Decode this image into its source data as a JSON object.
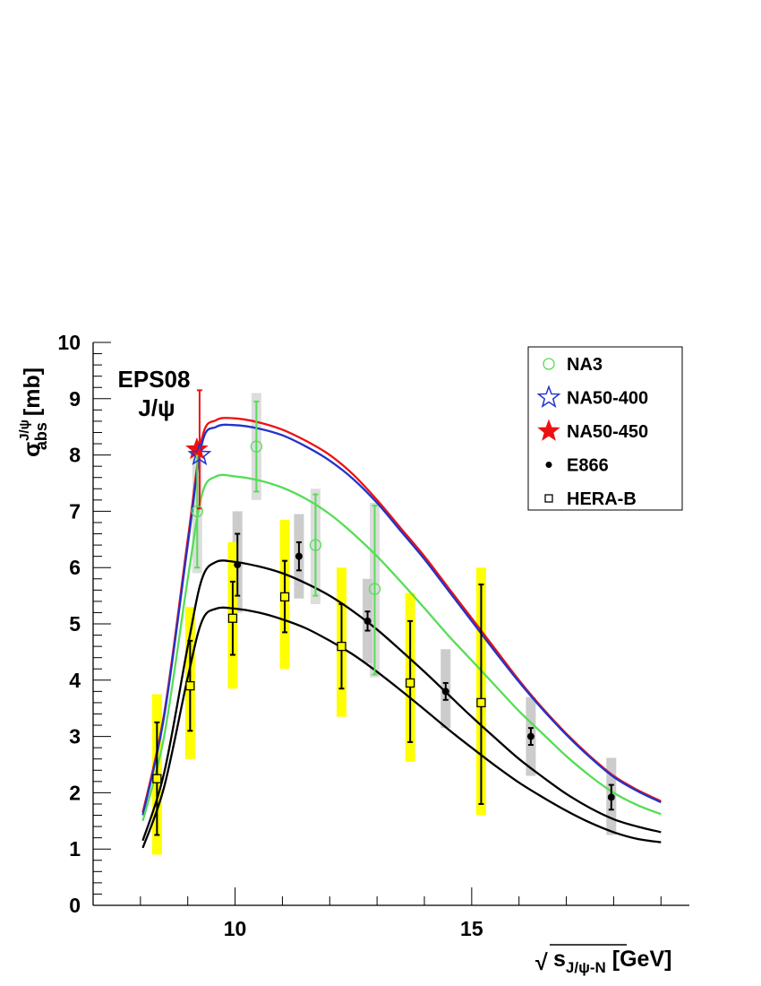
{
  "chart_data": {
    "type": "scatter",
    "title": "",
    "annotation_line1": "EPS08",
    "annotation_line2": "J/ψ",
    "ylabel": "σ",
    "ylabel_sup": "J/ψ",
    "ylabel_sub": "abs",
    "ylabel_unit": " [mb]",
    "xlabel_sqrt": "√",
    "xlabel_var": "s",
    "xlabel_sub": "J/ψ-N",
    "xlabel_unit": " [GeV]",
    "xlim": [
      7,
      19.6
    ],
    "ylim": [
      0,
      10
    ],
    "x_ticks": [
      10,
      15
    ],
    "x_tick_labels": [
      "10",
      "15"
    ],
    "y_ticks": [
      0,
      1,
      2,
      3,
      4,
      5,
      6,
      7,
      8,
      9,
      10
    ],
    "y_tick_labels": [
      "0",
      "1",
      "2",
      "3",
      "4",
      "5",
      "6",
      "7",
      "8",
      "9",
      "10"
    ],
    "legend": {
      "position": "top-right",
      "entries": [
        {
          "label": "NA3",
          "marker": "open-circle",
          "color": "#55dd55"
        },
        {
          "label": "NA50-400",
          "marker": "open-star",
          "color": "#2233cc"
        },
        {
          "label": "NA50-450",
          "marker": "filled-star",
          "color": "#ee1111"
        },
        {
          "label": "E866",
          "marker": "filled-circle",
          "color": "#000000"
        },
        {
          "label": "HERA-B",
          "marker": "open-square",
          "color": "#000000"
        }
      ]
    },
    "series": [
      {
        "name": "NA3",
        "marker": "open-circle",
        "color": "#55dd55",
        "sys_color": "#dddddd",
        "points": [
          {
            "x": 9.2,
            "y": 7.0,
            "stat": [
              6.0,
              8.0
            ],
            "sys": [
              5.9,
              8.1
            ]
          },
          {
            "x": 10.45,
            "y": 8.15,
            "stat": [
              7.35,
              8.95
            ],
            "sys": [
              7.2,
              9.1
            ]
          },
          {
            "x": 11.7,
            "y": 6.4,
            "stat": [
              5.5,
              7.3
            ],
            "sys": [
              5.35,
              7.4
            ]
          },
          {
            "x": 12.95,
            "y": 5.62,
            "stat": [
              4.1,
              7.1
            ],
            "sys": [
              4.05,
              7.15
            ]
          }
        ]
      },
      {
        "name": "NA50-400",
        "marker": "open-star",
        "color": "#2233cc",
        "points": [
          {
            "x": 9.25,
            "y": 8.0
          }
        ]
      },
      {
        "name": "NA50-450",
        "marker": "filled-star",
        "color": "#ee1111",
        "points": [
          {
            "x": 9.25,
            "y": 8.1,
            "stat": [
              7.05,
              9.15
            ]
          }
        ]
      },
      {
        "name": "E866",
        "marker": "filled-circle",
        "color": "#000000",
        "sys_color": "#cccccc",
        "points": [
          {
            "x": 10.05,
            "y": 6.05,
            "stat": [
              5.5,
              6.6
            ],
            "sys": [
              5.2,
              7.0
            ]
          },
          {
            "x": 11.35,
            "y": 6.2,
            "stat": [
              5.95,
              6.45
            ],
            "sys": [
              5.45,
              6.95
            ]
          },
          {
            "x": 12.8,
            "y": 5.05,
            "stat": [
              4.88,
              5.22
            ],
            "sys": [
              4.3,
              5.8
            ]
          },
          {
            "x": 14.45,
            "y": 3.8,
            "stat": [
              3.65,
              3.95
            ],
            "sys": [
              3.15,
              4.55
            ]
          },
          {
            "x": 16.25,
            "y": 3.0,
            "stat": [
              2.85,
              3.15
            ],
            "sys": [
              2.3,
              3.7
            ]
          },
          {
            "x": 17.95,
            "y": 1.92,
            "stat": [
              1.7,
              2.14
            ],
            "sys": [
              1.25,
              2.62
            ]
          }
        ]
      },
      {
        "name": "HERA-B",
        "marker": "open-square",
        "color": "#000000",
        "fill": "#ffff00",
        "sys_color": "#ffff00",
        "points": [
          {
            "x": 8.35,
            "y": 2.25,
            "stat": [
              1.25,
              3.25
            ],
            "sys": [
              0.9,
              3.75
            ]
          },
          {
            "x": 9.05,
            "y": 3.9,
            "stat": [
              3.1,
              4.7
            ],
            "sys": [
              2.6,
              5.3
            ]
          },
          {
            "x": 9.95,
            "y": 5.1,
            "stat": [
              4.45,
              5.75
            ],
            "sys": [
              3.85,
              6.45
            ]
          },
          {
            "x": 11.05,
            "y": 5.48,
            "stat": [
              4.85,
              6.12
            ],
            "sys": [
              4.2,
              6.85
            ]
          },
          {
            "x": 12.25,
            "y": 4.6,
            "stat": [
              3.85,
              5.35
            ],
            "sys": [
              3.35,
              6.0
            ]
          },
          {
            "x": 13.7,
            "y": 3.95,
            "stat": [
              2.9,
              5.05
            ],
            "sys": [
              2.55,
              5.55
            ]
          },
          {
            "x": 15.2,
            "y": 3.6,
            "stat": [
              1.8,
              5.7
            ],
            "sys": [
              1.6,
              6.0
            ]
          }
        ]
      }
    ],
    "curves": [
      {
        "name": "NA50-450 fit",
        "color": "#ee1111",
        "points": [
          [
            8.05,
            1.65
          ],
          [
            8.5,
            3.4
          ],
          [
            9.0,
            6.5
          ],
          [
            9.3,
            8.3
          ],
          [
            9.6,
            8.62
          ],
          [
            10.0,
            8.65
          ],
          [
            10.5,
            8.58
          ],
          [
            11.0,
            8.45
          ],
          [
            11.5,
            8.25
          ],
          [
            12.0,
            8.0
          ],
          [
            12.5,
            7.65
          ],
          [
            13.0,
            7.2
          ],
          [
            13.5,
            6.7
          ],
          [
            14.0,
            6.2
          ],
          [
            14.5,
            5.65
          ],
          [
            15.0,
            5.1
          ],
          [
            15.5,
            4.55
          ],
          [
            16.0,
            4.0
          ],
          [
            16.5,
            3.5
          ],
          [
            17.0,
            3.05
          ],
          [
            17.5,
            2.65
          ],
          [
            18.0,
            2.3
          ],
          [
            18.5,
            2.05
          ],
          [
            19.0,
            1.85
          ]
        ]
      },
      {
        "name": "NA50-400 fit",
        "color": "#2233cc",
        "points": [
          [
            8.05,
            1.6
          ],
          [
            8.5,
            3.35
          ],
          [
            9.0,
            6.4
          ],
          [
            9.3,
            8.2
          ],
          [
            9.6,
            8.5
          ],
          [
            10.0,
            8.53
          ],
          [
            10.5,
            8.47
          ],
          [
            11.0,
            8.35
          ],
          [
            11.5,
            8.15
          ],
          [
            12.0,
            7.9
          ],
          [
            12.5,
            7.57
          ],
          [
            13.0,
            7.15
          ],
          [
            13.5,
            6.65
          ],
          [
            14.0,
            6.15
          ],
          [
            14.5,
            5.6
          ],
          [
            15.0,
            5.05
          ],
          [
            15.5,
            4.5
          ],
          [
            16.0,
            3.97
          ],
          [
            16.5,
            3.48
          ],
          [
            17.0,
            3.03
          ],
          [
            17.5,
            2.63
          ],
          [
            18.0,
            2.28
          ],
          [
            18.5,
            2.03
          ],
          [
            19.0,
            1.83
          ]
        ]
      },
      {
        "name": "NA3 fit",
        "color": "#55dd55",
        "points": [
          [
            8.05,
            1.5
          ],
          [
            8.5,
            3.0
          ],
          [
            9.0,
            5.8
          ],
          [
            9.3,
            7.3
          ],
          [
            9.6,
            7.62
          ],
          [
            10.0,
            7.62
          ],
          [
            10.5,
            7.55
          ],
          [
            11.0,
            7.42
          ],
          [
            11.5,
            7.22
          ],
          [
            12.0,
            6.95
          ],
          [
            12.5,
            6.6
          ],
          [
            13.0,
            6.2
          ],
          [
            13.5,
            5.75
          ],
          [
            14.0,
            5.28
          ],
          [
            14.5,
            4.8
          ],
          [
            15.0,
            4.35
          ],
          [
            15.5,
            3.9
          ],
          [
            16.0,
            3.45
          ],
          [
            16.5,
            3.05
          ],
          [
            17.0,
            2.65
          ],
          [
            17.5,
            2.3
          ],
          [
            18.0,
            2.0
          ],
          [
            18.5,
            1.78
          ],
          [
            19.0,
            1.62
          ]
        ]
      },
      {
        "name": "E866 fit",
        "color": "#000000",
        "points": [
          [
            8.05,
            1.15
          ],
          [
            8.5,
            2.35
          ],
          [
            9.0,
            4.6
          ],
          [
            9.3,
            5.8
          ],
          [
            9.6,
            6.1
          ],
          [
            10.0,
            6.1
          ],
          [
            10.5,
            6.02
          ],
          [
            11.0,
            5.9
          ],
          [
            11.5,
            5.72
          ],
          [
            12.0,
            5.5
          ],
          [
            12.5,
            5.22
          ],
          [
            13.0,
            4.9
          ],
          [
            13.5,
            4.53
          ],
          [
            14.0,
            4.15
          ],
          [
            14.5,
            3.75
          ],
          [
            15.0,
            3.35
          ],
          [
            15.5,
            2.97
          ],
          [
            16.0,
            2.6
          ],
          [
            16.5,
            2.28
          ],
          [
            17.0,
            1.98
          ],
          [
            17.5,
            1.73
          ],
          [
            18.0,
            1.53
          ],
          [
            18.5,
            1.4
          ],
          [
            19.0,
            1.3
          ]
        ]
      },
      {
        "name": "HERA-B fit",
        "color": "#000000",
        "points": [
          [
            8.05,
            1.02
          ],
          [
            8.5,
            2.1
          ],
          [
            9.0,
            4.05
          ],
          [
            9.3,
            5.05
          ],
          [
            9.6,
            5.27
          ],
          [
            10.0,
            5.27
          ],
          [
            10.5,
            5.2
          ],
          [
            11.0,
            5.08
          ],
          [
            11.5,
            4.92
          ],
          [
            12.0,
            4.7
          ],
          [
            12.5,
            4.45
          ],
          [
            13.0,
            4.15
          ],
          [
            13.5,
            3.82
          ],
          [
            14.0,
            3.48
          ],
          [
            14.5,
            3.13
          ],
          [
            15.0,
            2.8
          ],
          [
            15.5,
            2.48
          ],
          [
            16.0,
            2.18
          ],
          [
            16.5,
            1.92
          ],
          [
            17.0,
            1.68
          ],
          [
            17.5,
            1.47
          ],
          [
            18.0,
            1.3
          ],
          [
            18.5,
            1.18
          ],
          [
            19.0,
            1.12
          ]
        ]
      }
    ]
  }
}
